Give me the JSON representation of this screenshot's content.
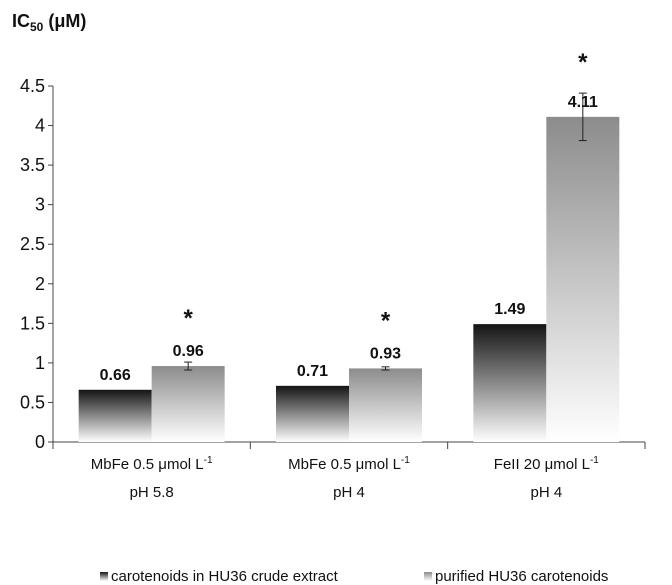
{
  "chart_data": {
    "type": "bar",
    "ylabel": "IC",
    "ylabel_sub": "50",
    "ylabel_unit": " (μM)",
    "ylim": [
      0,
      4.5
    ],
    "yticks": [
      "0",
      "0.5",
      "1",
      "1.5",
      "2",
      "2.5",
      "3",
      "3.5",
      "4",
      "4.5"
    ],
    "categories": [
      {
        "line1": "MbFe 0.5 μmol L",
        "sup": "-1",
        "line2": "pH 5.8"
      },
      {
        "line1": "MbFe 0.5 μmol L",
        "sup": "-1",
        "line2": "pH 4"
      },
      {
        "line1": "FeII 20 μmol L",
        "sup": "-1",
        "line2": "pH 4"
      }
    ],
    "series": [
      {
        "name": "carotenoids in HU36 crude extract",
        "values": [
          0.66,
          0.71,
          1.49
        ],
        "labels": [
          "0.66",
          "0.71",
          "1.49"
        ],
        "errors": [
          0,
          0,
          0
        ],
        "color_top": "#141414",
        "color_bottom": "#ffffff"
      },
      {
        "name": "purified HU36 carotenoids",
        "values": [
          0.96,
          0.93,
          4.11
        ],
        "labels": [
          "0.96",
          "0.93",
          "4.11"
        ],
        "errors": [
          0.05,
          0.02,
          0.3
        ],
        "color_top": "#8c8c8c",
        "color_bottom": "#ffffff"
      }
    ],
    "significance": [
      "*",
      "*",
      "*"
    ],
    "legend_position": "bottom",
    "grid": false
  }
}
